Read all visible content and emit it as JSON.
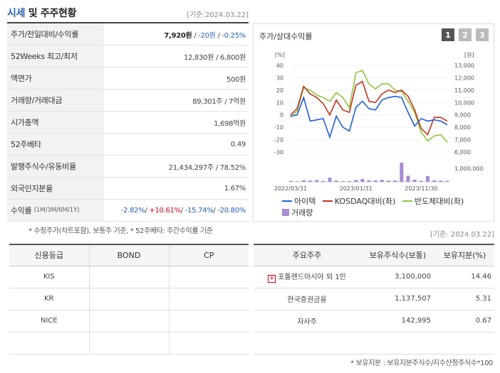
{
  "header": {
    "title_part1": "시세",
    "title_part2": " 및 주주현황",
    "date": "[기준:2024.03.22]"
  },
  "stats": [
    {
      "label": "주가/전일대비/수익률",
      "price": "7,920원",
      "sep1": " / ",
      "change": "-20원",
      "sep2": " / ",
      "rate": "-0.25%"
    },
    {
      "label": "52Weeks 최고/최저",
      "value": "12,830원 / 6,800원"
    },
    {
      "label": "액면가",
      "value": "500원"
    },
    {
      "label": "거래량/거래대금",
      "value": "89,301주 / 7억원"
    },
    {
      "label": "시가총액",
      "value": "1,698억원"
    },
    {
      "label": "52주베타",
      "value": "0.49"
    },
    {
      "label": "발행주식수/유동비율",
      "value": "21,434,297주 / 78.52%"
    },
    {
      "label": "외국인지분율",
      "value": "1.67%"
    },
    {
      "label": "수익률",
      "label_sub": "(1M/3M/6M/1Y)",
      "r1": "-2.82%",
      "r2": "+10.61%",
      "r3": "-15.74%",
      "r4": "-20.80%",
      "sep": "/ "
    }
  ],
  "chart": {
    "title": "주가/상대수익률",
    "buttons": [
      "1",
      "2",
      "3"
    ],
    "left_unit": "[%]",
    "right_unit": "[원]",
    "left_ticks": [
      "40",
      "30",
      "20",
      "10",
      "0",
      "-10",
      "-20",
      "-30"
    ],
    "right_ticks": [
      "13,000",
      "12,000",
      "11,000",
      "10,000",
      "9,000",
      "8,000",
      "7,000",
      "6,000"
    ],
    "volume_tick": "1,000,000",
    "x_ticks": [
      "2022/03/31",
      "2023/01/31",
      "2023/11/30"
    ],
    "legend": [
      "아이텍",
      "KOSDAQ대비(좌)",
      "반도체대비(좌)",
      "거래량"
    ],
    "colors": {
      "stock": "#1f5fd6",
      "kosdaq": "#c8321e",
      "semi": "#8cc63f",
      "volume": "#a98bd6"
    }
  },
  "chart_data": {
    "type": "line",
    "x": [
      "2022/03/31",
      "2022/04",
      "2022/05",
      "2022/06",
      "2022/07",
      "2022/08",
      "2022/09",
      "2022/10",
      "2022/11",
      "2022/12",
      "2023/01/31",
      "2023/02",
      "2023/03",
      "2023/04",
      "2023/05",
      "2023/06",
      "2023/07",
      "2023/08",
      "2023/09",
      "2023/10",
      "2023/11/30",
      "2023/12",
      "2024/01",
      "2024/02",
      "2024/03"
    ],
    "series": [
      {
        "name": "아이텍",
        "axis": "right",
        "values": [
          8900,
          9000,
          10400,
          8500,
          8600,
          8700,
          7200,
          8900,
          8000,
          7700,
          9600,
          10100,
          9500,
          9400,
          10200,
          10400,
          10500,
          10400,
          9200,
          8100,
          8700,
          8500,
          8600,
          8500,
          8200
        ]
      },
      {
        "name": "KOSDAQ대비(좌)",
        "axis": "left",
        "values": [
          0,
          5,
          23,
          17,
          14,
          9,
          0,
          12,
          4,
          2,
          24,
          27,
          11,
          10,
          17,
          20,
          18,
          20,
          15,
          4,
          -11,
          -16,
          -2,
          -2,
          -5
        ]
      },
      {
        "name": "반도체대비(좌)",
        "axis": "left",
        "values": [
          -2,
          3,
          22,
          20,
          16,
          14,
          11,
          18,
          14,
          6,
          34,
          36,
          25,
          21,
          25,
          25,
          20,
          19,
          11,
          2,
          -14,
          -21,
          -17,
          -16,
          -22
        ]
      },
      {
        "name": "거래량",
        "axis": "volume",
        "values": [
          100000,
          50000,
          150000,
          120000,
          180000,
          90000,
          400000,
          130000,
          70000,
          80000,
          180000,
          280000,
          150000,
          130000,
          190000,
          120000,
          130000,
          1800000,
          580000,
          210000,
          90000,
          550000,
          140000,
          120000,
          100000
        ]
      }
    ],
    "ylim_left": [
      -30,
      40
    ],
    "ylim_right": [
      6000,
      13000
    ]
  },
  "notes": {
    "note1": "* 수정주가(차트포함), 보통주 기준, * 52주베타: 주간수익률 기준",
    "date_mid": "[기준: 2024.03.22]",
    "note2": "* 보유지분 : 보유지분주식수/지수산정주식수*100"
  },
  "credit": {
    "headers": [
      "신용등급",
      "BOND",
      "CP"
    ],
    "rows": [
      [
        "KIS",
        "",
        ""
      ],
      [
        "KR",
        "",
        ""
      ],
      [
        "NICE",
        "",
        ""
      ],
      [
        "",
        "",
        ""
      ]
    ]
  },
  "holders": {
    "headers": [
      "주요주주",
      "보유주식수(보통)",
      "보유지분(%)"
    ],
    "rows": [
      {
        "name": "포틀랜드아시아 외 1인",
        "shares": "3,100,000",
        "pct": "14.46",
        "plus": "+"
      },
      {
        "name": "한국증권금융",
        "shares": "1,137,507",
        "pct": "5.31"
      },
      {
        "name": "자사주",
        "shares": "142,995",
        "pct": "0.67"
      },
      {
        "name": "",
        "shares": "",
        "pct": ""
      }
    ]
  }
}
